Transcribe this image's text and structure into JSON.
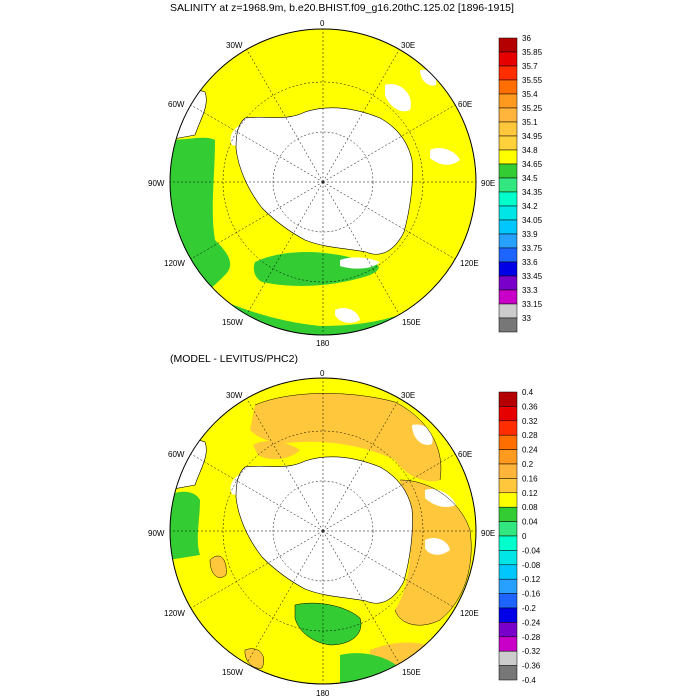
{
  "top": {
    "title": "SALINITY at z=1968.9m, b.e20.BHIST.f09_g16.20thC.125.02 [1896-1915]",
    "lon_labels": {
      "l0": "0",
      "l30e": "30E",
      "l60e": "60E",
      "l90e": "90E",
      "l120e": "120E",
      "l150e": "150E",
      "l180": "180",
      "l150w": "150W",
      "l120w": "120W",
      "l90w": "90W",
      "l60w": "60W",
      "l30w": "30W"
    },
    "colorbar": {
      "labels": [
        "36",
        "35.85",
        "35.7",
        "35.55",
        "35.4",
        "35.25",
        "35.1",
        "34.95",
        "34.8",
        "34.65",
        "34.5",
        "34.35",
        "34.2",
        "34.05",
        "33.9",
        "33.75",
        "33.6",
        "33.45",
        "33.3",
        "33.15",
        "33"
      ],
      "colors": [
        "#b40000",
        "#e60000",
        "#ff2d00",
        "#ff6e00",
        "#ff9a1e",
        "#ffb43c",
        "#ffc83c",
        "#ffd23c",
        "#ffff00",
        "#33cc33",
        "#33e680",
        "#00ffcc",
        "#00e6e6",
        "#00c8ff",
        "#28a0ff",
        "#1e64ff",
        "#0000e6",
        "#7800c8",
        "#c800c8",
        "#cccccc",
        "#777777"
      ]
    },
    "regions": {
      "fill": "#ffff00",
      "green": "#33cc33",
      "land": "#ffffff"
    }
  },
  "bottom": {
    "title": "(MODEL - LEVITUS/PHC2)",
    "lon_labels": {
      "l0": "0",
      "l30e": "30E",
      "l60e": "60E",
      "l90e": "90E",
      "l120e": "120E",
      "l150e": "150E",
      "l180": "180",
      "l150w": "150W",
      "l120w": "120W",
      "l90w": "90W",
      "l60w": "60W",
      "l30w": "30W"
    },
    "colorbar": {
      "labels": [
        "0.4",
        "0.36",
        "0.32",
        "0.28",
        "0.24",
        "0.2",
        "0.16",
        "0.12",
        "0.08",
        "0.04",
        "0",
        "-0.04",
        "-0.08",
        "-0.12",
        "-0.16",
        "-0.2",
        "-0.24",
        "-0.28",
        "-0.32",
        "-0.36",
        "-0.4"
      ],
      "colors": [
        "#b40000",
        "#e60000",
        "#ff2d00",
        "#ff6e00",
        "#ff9a1e",
        "#ffb43c",
        "#ffc83c",
        "#ffff00",
        "#33cc33",
        "#33e680",
        "#00ffcc",
        "#00e6e6",
        "#00c8ff",
        "#28a0ff",
        "#1e64ff",
        "#0000e6",
        "#7800c8",
        "#c800c8",
        "#cccccc",
        "#777777"
      ]
    },
    "regions": {
      "fill": "#ffff00",
      "orange": "#ffc83c",
      "green": "#33cc33",
      "land": "#ffffff"
    }
  }
}
